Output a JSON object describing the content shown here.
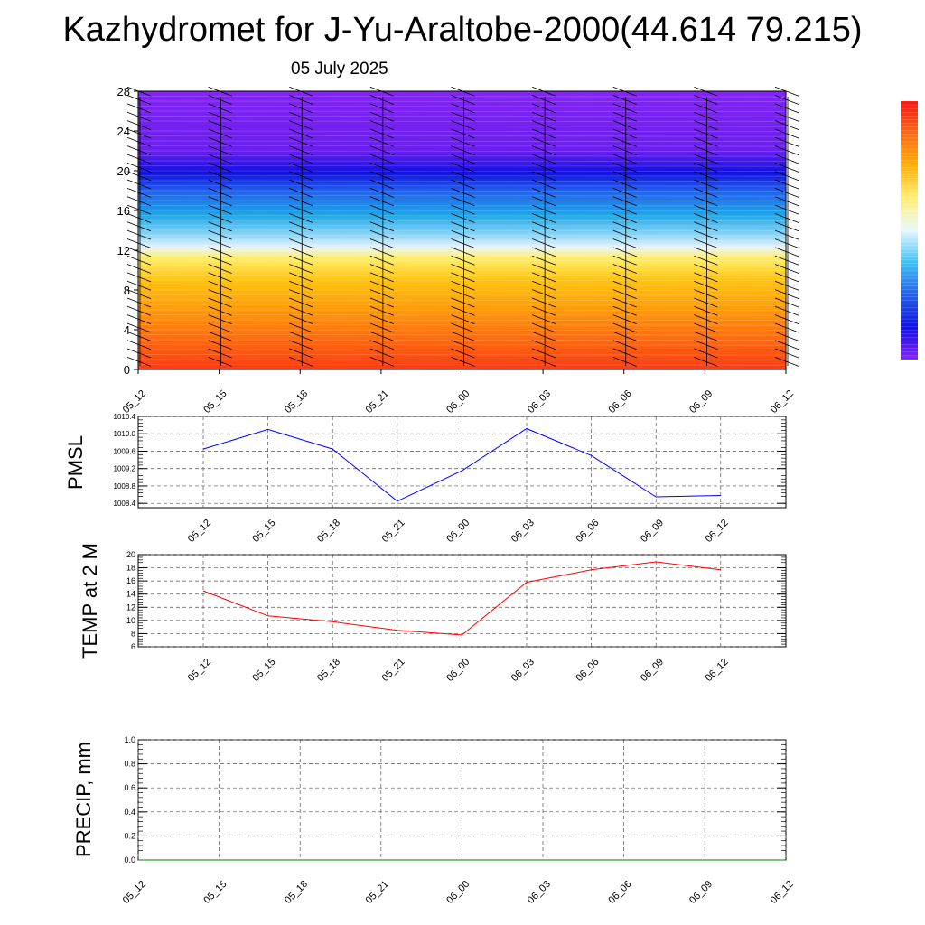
{
  "title": "Kazhydromet for J-Yu-Araltobe-2000(44.614 79.215)",
  "date_label": "05 July 2025",
  "time_ticks": [
    "05_12",
    "05_15",
    "05_18",
    "05_21",
    "06_00",
    "06_03",
    "06_06",
    "06_09",
    "06_12"
  ],
  "chart_data": [
    {
      "type": "heatmap",
      "ylim": [
        0,
        28
      ],
      "yticks": [
        0,
        4,
        8,
        12,
        16,
        20,
        24,
        28
      ],
      "xticks": [
        "05_12",
        "05_15",
        "05_18",
        "05_21",
        "06_00",
        "06_03",
        "06_06",
        "06_09",
        "06_12"
      ],
      "gradient_stops": [
        {
          "y": 0,
          "color": "#ff3a12"
        },
        {
          "y": 3,
          "color": "#ff6a10"
        },
        {
          "y": 6,
          "color": "#ff9a0a"
        },
        {
          "y": 9,
          "color": "#ffc410"
        },
        {
          "y": 11.3,
          "color": "#fff070"
        },
        {
          "y": 12.3,
          "color": "#e8f4ff"
        },
        {
          "y": 13.5,
          "color": "#8fd6f6"
        },
        {
          "y": 15.5,
          "color": "#1ea8e8"
        },
        {
          "y": 18,
          "color": "#2060ee"
        },
        {
          "y": 19.8,
          "color": "#1010e0"
        },
        {
          "y": 22,
          "color": "#6a1ef0"
        },
        {
          "y": 28,
          "color": "#8424f6"
        }
      ],
      "colorbar_colors": [
        "#ff1010",
        "#ff6a10",
        "#ffb010",
        "#fff070",
        "#e8f8ff",
        "#40c0f0",
        "#2060ee",
        "#1010e0",
        "#8424f6"
      ]
    },
    {
      "type": "line",
      "ylabel": "PMSL",
      "ylim": [
        1008.3,
        1010.4
      ],
      "yticks": [
        1008.4,
        1008.8,
        1009.2,
        1009.6,
        1010.0,
        1010.4
      ],
      "ytick_labels": [
        "1008.4",
        "1008.8",
        "1009.2",
        "1009.6",
        "1010.0",
        "1010.4"
      ],
      "categories": [
        "05_12",
        "05_15",
        "05_18",
        "05_21",
        "06_00",
        "06_03",
        "06_06",
        "06_09",
        "06_12"
      ],
      "series": [
        {
          "values": [
            1009.65,
            1010.1,
            1009.65,
            1008.45,
            1009.15,
            1010.12,
            1009.5,
            1008.55,
            1008.58
          ],
          "color": "#0000ff"
        }
      ]
    },
    {
      "type": "line",
      "ylabel": "TEMP at 2 M",
      "ylim": [
        6,
        20
      ],
      "yticks": [
        6,
        8,
        10,
        12,
        14,
        16,
        18,
        20
      ],
      "ytick_labels": [
        "6",
        "8",
        "10",
        "12",
        "14",
        "16",
        "18",
        "20"
      ],
      "categories": [
        "05_12",
        "05_15",
        "05_18",
        "05_21",
        "06_00",
        "06_03",
        "06_06",
        "06_09",
        "06_12"
      ],
      "series": [
        {
          "values": [
            14.5,
            10.7,
            9.8,
            8.5,
            7.8,
            15.8,
            17.7,
            18.9,
            17.7
          ],
          "color": "#ff0000"
        }
      ]
    },
    {
      "type": "line",
      "ylabel": "PRECIP, mm",
      "ylim": [
        0,
        1
      ],
      "yticks": [
        0,
        0.2,
        0.4,
        0.6,
        0.8,
        1.0
      ],
      "ytick_labels": [
        "0.0",
        "0.2",
        "0.4",
        "0.6",
        "0.8",
        "1.0"
      ],
      "xticks": [
        "05_12",
        "05_15",
        "05_18",
        "05_21",
        "06_00",
        "06_03",
        "06_06",
        "06_09",
        "06_12"
      ],
      "series": [
        {
          "values": [
            0,
            0,
            0,
            0,
            0,
            0,
            0,
            0,
            0
          ],
          "color": "#008000"
        }
      ]
    }
  ]
}
